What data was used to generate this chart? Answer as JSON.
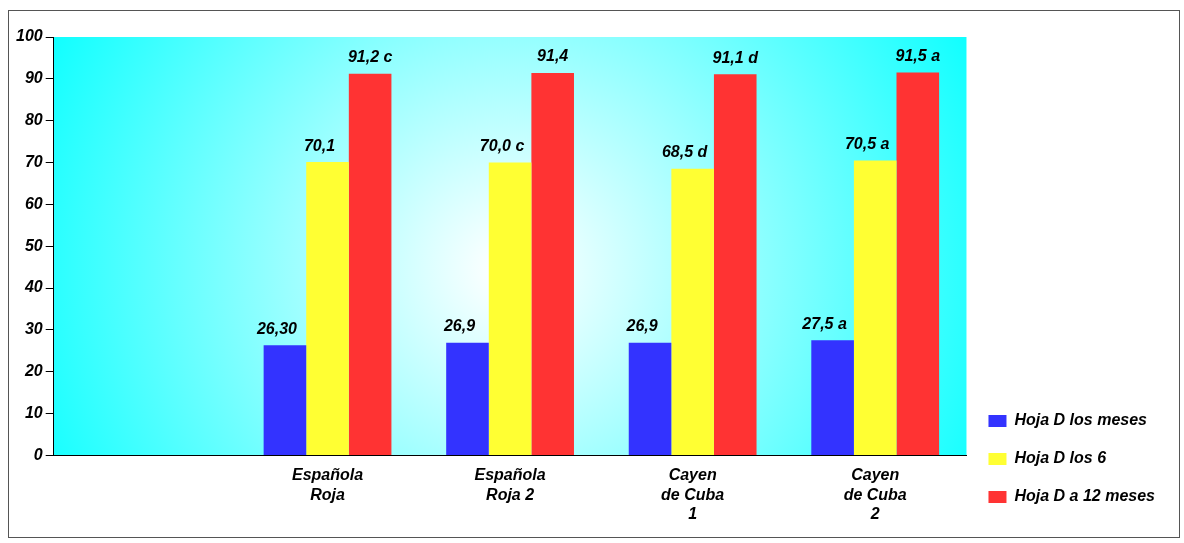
{
  "chart_data": {
    "type": "bar",
    "categories": [
      null,
      "Española\nRoja",
      "Española\nRoja 2",
      "Cayen\nde Cuba\n1",
      "Cayen\nde Cuba\n2"
    ],
    "series": [
      {
        "name": "Hoja D los meses",
        "color": "#3333ff",
        "values": [
          null,
          26.3,
          26.9,
          26.9,
          27.5
        ],
        "value_labels": [
          null,
          "26,30",
          "26,9",
          "26,9",
          "27,5 a"
        ]
      },
      {
        "name": "Hoja D los 6",
        "color": "#ffff33",
        "values": [
          null,
          70.1,
          70.0,
          68.5,
          70.5
        ],
        "value_labels": [
          null,
          "70,1",
          "70,0 c",
          "68,5 d",
          "70,5 a"
        ]
      },
      {
        "name": "Hoja D a 12 meses",
        "color": "#ff3333",
        "values": [
          null,
          91.2,
          91.4,
          91.1,
          91.5
        ],
        "value_labels": [
          null,
          "91,2 c",
          "91,4",
          "91,1 d",
          "91,5 a"
        ]
      }
    ],
    "ylim": [
      0,
      100
    ],
    "yticks": [
      0,
      10,
      20,
      30,
      40,
      50,
      60,
      70,
      80,
      90,
      100
    ],
    "grid": false,
    "legend": "right"
  }
}
